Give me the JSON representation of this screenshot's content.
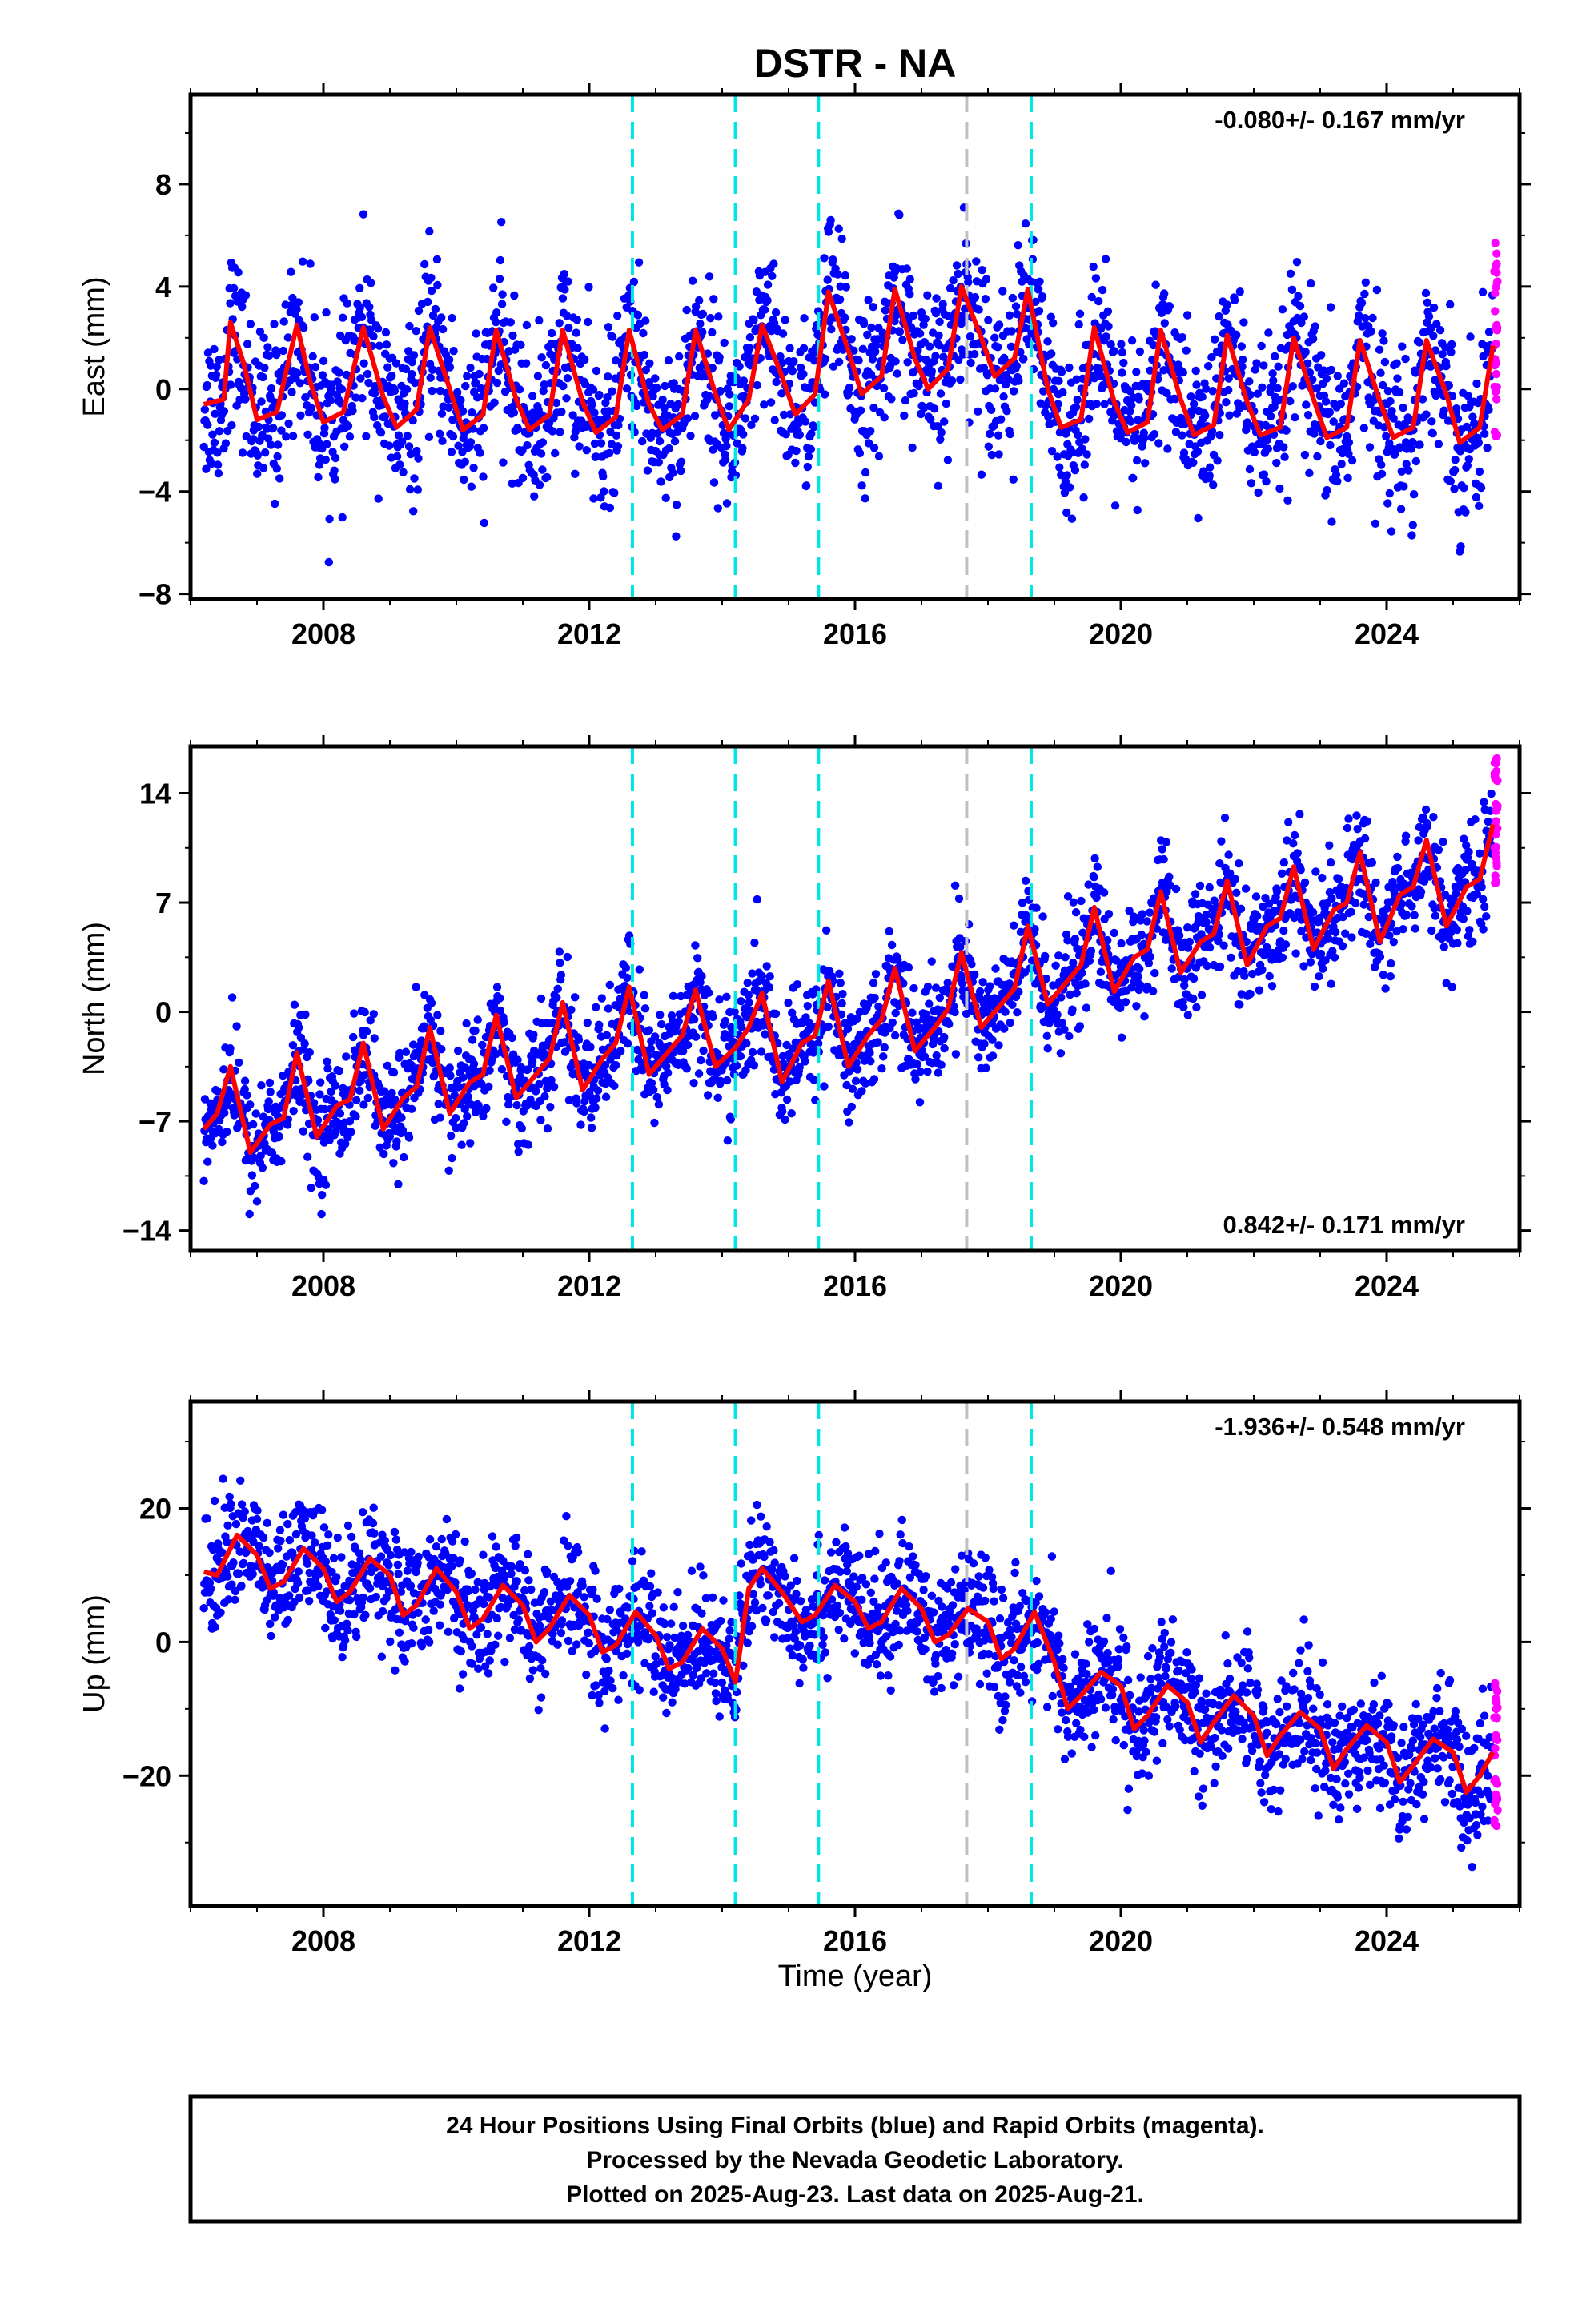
{
  "title": "DSTR - NA",
  "colors": {
    "final_orbits": "#0000ff",
    "rapid_orbits": "#ff00ff",
    "model": "#ff0000",
    "cyan_marker": "#00e5e5",
    "gray_marker": "#c0c0c0"
  },
  "chart_data": [
    {
      "type": "scatter",
      "name": "east",
      "ylabel": "East (mm)",
      "ylim": [
        -8.2,
        11.5
      ],
      "xlim": [
        2006.0,
        2026.0
      ],
      "yticks": [
        -8,
        -4,
        0,
        4,
        8
      ],
      "xticks": [
        2008,
        2012,
        2016,
        2020,
        2024
      ],
      "annotation": "-0.080+/- 0.167 mm/yr",
      "annotation_position": "top-right",
      "cyan_lines": [
        2012.65,
        2014.2,
        2015.45,
        2018.65
      ],
      "gray_lines": [
        2017.68
      ],
      "model": {
        "x": [
          2006.2,
          2006.5,
          2006.6,
          2006.8,
          2007.0,
          2007.3,
          2007.6,
          2007.8,
          2008.0,
          2008.3,
          2008.6,
          2008.9,
          2009.1,
          2009.4,
          2009.6,
          2009.9,
          2010.1,
          2010.4,
          2010.6,
          2010.9,
          2011.1,
          2011.4,
          2011.6,
          2011.9,
          2012.1,
          2012.4,
          2012.6,
          2012.9,
          2013.1,
          2013.4,
          2013.6,
          2013.9,
          2014.1,
          2014.4,
          2014.6,
          2014.9,
          2015.1,
          2015.4,
          2015.6,
          2015.9,
          2016.1,
          2016.4,
          2016.6,
          2016.9,
          2017.1,
          2017.4,
          2017.6,
          2017.9,
          2018.1,
          2018.4,
          2018.6,
          2018.9,
          2019.1,
          2019.4,
          2019.6,
          2019.9,
          2020.1,
          2020.4,
          2020.6,
          2020.9,
          2021.1,
          2021.4,
          2021.6,
          2021.9,
          2022.1,
          2022.4,
          2022.6,
          2022.9,
          2023.1,
          2023.4,
          2023.6,
          2023.9,
          2024.1,
          2024.4,
          2024.6,
          2024.9,
          2025.1,
          2025.4,
          2025.6
        ],
        "y": [
          -0.6,
          -0.4,
          2.6,
          1.0,
          -1.2,
          -0.9,
          2.5,
          0.3,
          -1.3,
          -0.9,
          2.4,
          -0.3,
          -1.5,
          -0.8,
          2.4,
          0.0,
          -1.6,
          -1.0,
          2.3,
          -0.4,
          -1.6,
          -1.0,
          2.3,
          -0.5,
          -1.7,
          -1.1,
          2.3,
          -0.6,
          -1.6,
          -1.0,
          2.3,
          -0.2,
          -1.6,
          -0.4,
          2.5,
          0.5,
          -1.0,
          -0.2,
          3.8,
          1.5,
          -0.2,
          0.5,
          3.9,
          1.2,
          0.0,
          0.8,
          4.0,
          2.0,
          0.5,
          1.2,
          3.9,
          0.0,
          -1.5,
          -1.2,
          2.4,
          -0.5,
          -1.7,
          -1.3,
          2.3,
          -0.4,
          -1.8,
          -1.4,
          2.1,
          -0.5,
          -1.8,
          -1.5,
          2.0,
          -0.4,
          -1.9,
          -1.5,
          1.9,
          -0.5,
          -1.9,
          -1.5,
          1.9,
          -0.2,
          -2.1,
          -1.5,
          1.7
        ]
      }
    },
    {
      "type": "scatter",
      "name": "north",
      "ylabel": "North (mm)",
      "ylim": [
        -15.3,
        17.0
      ],
      "xlim": [
        2006.0,
        2026.0
      ],
      "yticks": [
        -14,
        -7,
        0,
        7,
        14
      ],
      "xticks": [
        2008,
        2012,
        2016,
        2020,
        2024
      ],
      "annotation": "0.842+/- 0.171 mm/yr",
      "annotation_position": "bottom-right",
      "cyan_lines": [
        2012.65,
        2014.2,
        2015.45,
        2018.65
      ],
      "gray_lines": [
        2017.68
      ],
      "model": {
        "x": [
          2006.2,
          2006.4,
          2006.6,
          2006.9,
          2007.2,
          2007.4,
          2007.6,
          2007.9,
          2008.2,
          2008.4,
          2008.6,
          2008.9,
          2009.2,
          2009.4,
          2009.6,
          2009.9,
          2010.2,
          2010.4,
          2010.6,
          2010.9,
          2011.2,
          2011.4,
          2011.6,
          2011.9,
          2012.2,
          2012.4,
          2012.6,
          2012.9,
          2013.2,
          2013.4,
          2013.6,
          2013.9,
          2014.2,
          2014.4,
          2014.6,
          2014.9,
          2015.2,
          2015.4,
          2015.6,
          2015.9,
          2016.2,
          2016.4,
          2016.6,
          2016.9,
          2017.2,
          2017.4,
          2017.6,
          2017.9,
          2018.2,
          2018.4,
          2018.6,
          2018.9,
          2019.2,
          2019.4,
          2019.6,
          2019.9,
          2020.2,
          2020.4,
          2020.6,
          2020.9,
          2021.2,
          2021.4,
          2021.6,
          2021.9,
          2022.2,
          2022.4,
          2022.6,
          2022.9,
          2023.2,
          2023.4,
          2023.6,
          2023.9,
          2024.2,
          2024.4,
          2024.6,
          2024.9,
          2025.2,
          2025.4,
          2025.6
        ],
        "y": [
          -7.5,
          -6.5,
          -3.5,
          -9.0,
          -7.2,
          -6.8,
          -2.6,
          -8.0,
          -6.0,
          -5.6,
          -2.0,
          -7.5,
          -5.5,
          -4.8,
          -1.0,
          -6.5,
          -4.5,
          -4.0,
          -0.2,
          -5.5,
          -4.0,
          -3.0,
          0.6,
          -5.0,
          -3.0,
          -2.0,
          1.6,
          -4.0,
          -2.5,
          -1.5,
          1.4,
          -3.5,
          -2.3,
          -1.0,
          1.2,
          -4.5,
          -2.0,
          -1.5,
          2.0,
          -3.5,
          -1.5,
          -0.5,
          2.8,
          -2.5,
          -1.0,
          0.2,
          3.8,
          -1.0,
          0.5,
          1.5,
          5.5,
          0.5,
          2.0,
          3.0,
          6.7,
          1.3,
          3.5,
          4.0,
          7.7,
          2.5,
          4.5,
          5.0,
          8.4,
          3.0,
          5.5,
          6.0,
          9.3,
          4.0,
          6.5,
          7.0,
          10.2,
          4.5,
          7.5,
          8.0,
          11.0,
          5.5,
          8.0,
          8.5,
          12.0
        ]
      }
    },
    {
      "type": "scatter",
      "name": "up",
      "ylabel": "Up (mm)",
      "xlabel": "Time (year)",
      "ylim": [
        -39.5,
        36.0
      ],
      "xlim": [
        2006.0,
        2026.0
      ],
      "yticks": [
        -20,
        0,
        20
      ],
      "xticks": [
        2008,
        2012,
        2016,
        2020,
        2024
      ],
      "annotation": "-1.936+/- 0.548 mm/yr",
      "annotation_position": "top-right",
      "cyan_lines": [
        2012.65,
        2014.2,
        2015.45,
        2018.65
      ],
      "gray_lines": [
        2017.68
      ],
      "model": {
        "x": [
          2006.2,
          2006.4,
          2006.7,
          2007.0,
          2007.2,
          2007.4,
          2007.7,
          2008.0,
          2008.2,
          2008.4,
          2008.7,
          2009.0,
          2009.2,
          2009.4,
          2009.7,
          2010.0,
          2010.2,
          2010.4,
          2010.7,
          2011.0,
          2011.2,
          2011.4,
          2011.7,
          2012.0,
          2012.2,
          2012.4,
          2012.7,
          2013.0,
          2013.2,
          2013.4,
          2013.7,
          2014.0,
          2014.2,
          2014.4,
          2014.6,
          2014.9,
          2015.2,
          2015.4,
          2015.7,
          2016.0,
          2016.2,
          2016.4,
          2016.7,
          2017.0,
          2017.2,
          2017.4,
          2017.7,
          2018.0,
          2018.2,
          2018.4,
          2018.7,
          2019.0,
          2019.2,
          2019.4,
          2019.7,
          2020.0,
          2020.2,
          2020.4,
          2020.7,
          2021.0,
          2021.2,
          2021.4,
          2021.7,
          2022.0,
          2022.2,
          2022.4,
          2022.7,
          2023.0,
          2023.2,
          2023.4,
          2023.7,
          2024.0,
          2024.2,
          2024.4,
          2024.7,
          2025.0,
          2025.2,
          2025.4,
          2025.6
        ],
        "y": [
          10.5,
          10.0,
          16.0,
          13.0,
          8.0,
          9.0,
          14.0,
          11.0,
          6.0,
          7.5,
          12.5,
          10.0,
          4.0,
          5.5,
          11.0,
          7.5,
          2.0,
          3.5,
          8.5,
          5.5,
          0.0,
          2.0,
          7.0,
          4.0,
          -1.5,
          -0.5,
          4.5,
          1.0,
          -4.0,
          -3.0,
          2.0,
          -1.0,
          -6.0,
          8.0,
          11.0,
          7.5,
          3.0,
          4.0,
          8.5,
          6.0,
          2.0,
          3.0,
          8.0,
          5.0,
          0.0,
          1.0,
          5.0,
          3.0,
          -2.5,
          -1.0,
          4.5,
          -3.0,
          -10.0,
          -8.0,
          -4.5,
          -6.5,
          -13.0,
          -11.0,
          -6.5,
          -9.0,
          -15.0,
          -12.0,
          -8.0,
          -11.0,
          -17.0,
          -14.0,
          -10.5,
          -13.0,
          -19.0,
          -16.0,
          -12.5,
          -15.0,
          -21.0,
          -18.5,
          -14.5,
          -16.5,
          -22.5,
          -20.0,
          -16.5
        ]
      }
    }
  ],
  "footer": {
    "line1": "24 Hour Positions Using Final Orbits (blue) and Rapid Orbits (magenta).",
    "line2": "Processed by the Nevada Geodetic Laboratory.",
    "line3": "Plotted on 2025-Aug-23. Last data on 2025-Aug-21."
  }
}
